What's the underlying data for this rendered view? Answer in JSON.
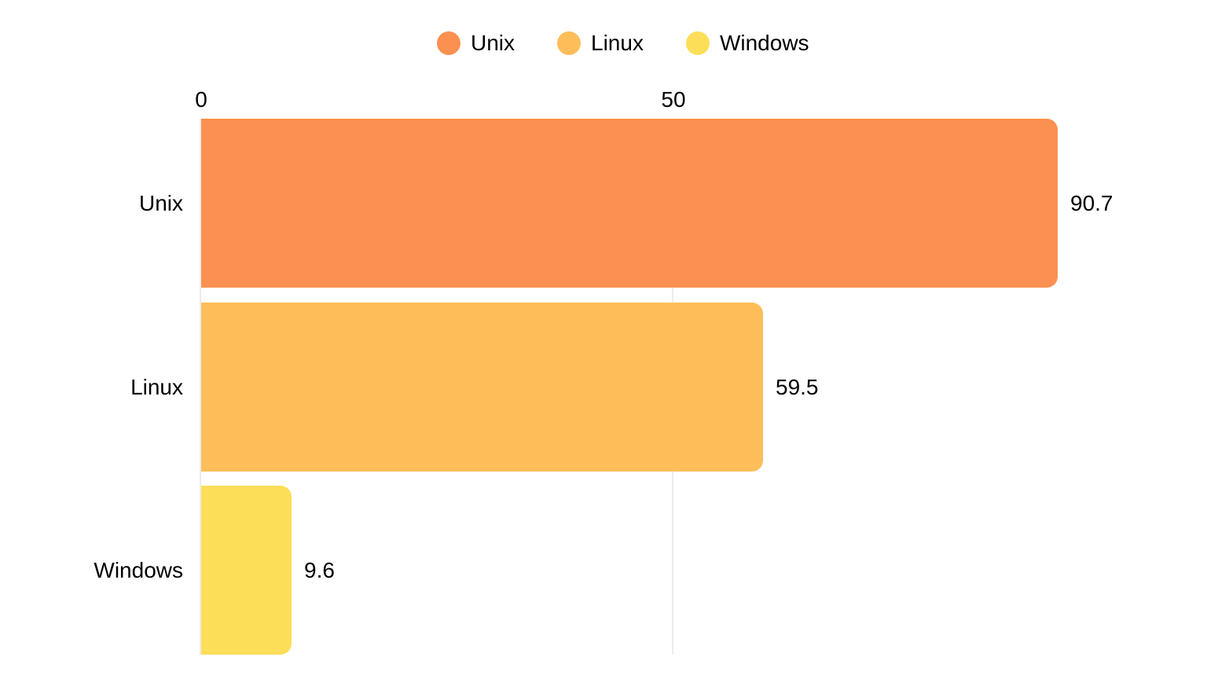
{
  "chart_data": {
    "type": "bar",
    "orientation": "horizontal",
    "title": "",
    "xlabel": "",
    "ylabel": "",
    "xlim": [
      0,
      100
    ],
    "grid": true,
    "x_tick_labels": [
      "0",
      "50"
    ],
    "x_tick_values": [
      0,
      50
    ],
    "categories": [
      "Unix",
      "Linux",
      "Windows"
    ],
    "values": [
      90.7,
      59.5,
      9.6
    ],
    "value_labels": [
      "90.7",
      "59.5",
      "9.6"
    ],
    "colors": [
      "#FB9050",
      "#FDBE5A",
      "#FDDE59"
    ],
    "legend_position": "top",
    "legend": [
      {
        "label": "Unix",
        "color": "#FB9050"
      },
      {
        "label": "Linux",
        "color": "#FDBE5A"
      },
      {
        "label": "Windows",
        "color": "#FDDE59"
      }
    ],
    "gridline_color": "#ececec"
  }
}
